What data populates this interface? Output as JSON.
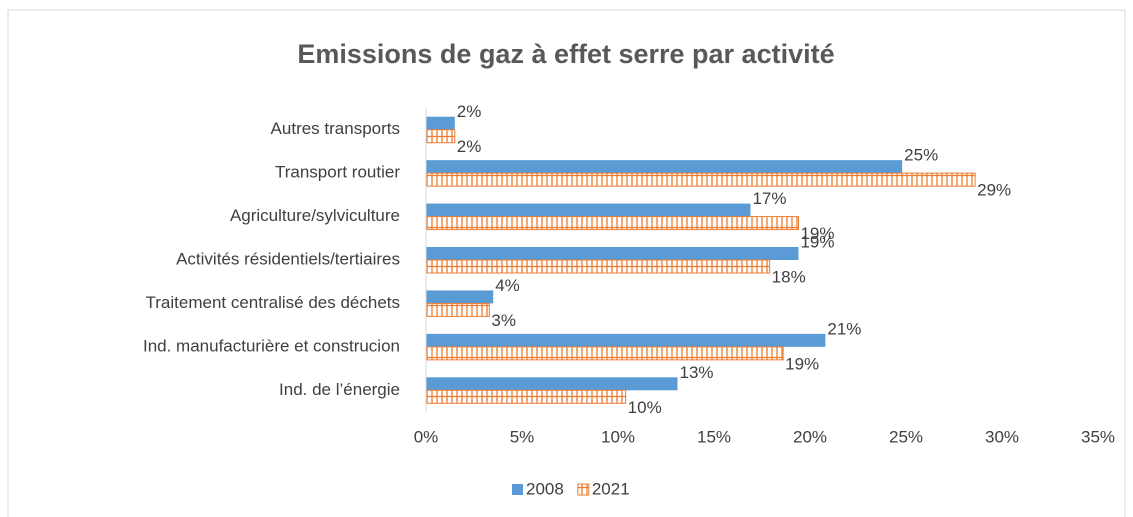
{
  "chart_data": {
    "type": "barh",
    "title": "Emissions de gaz à effet serre par activité",
    "categories": [
      "Autres transports",
      "Transport routier",
      "Agriculture/sylviculture",
      "Activités résidentiels/tertiaires",
      "Traitement centralisé des déchets",
      "Ind. manufacturière et construcion",
      "Ind. de l’énergie"
    ],
    "series": [
      {
        "name": "2008",
        "color": "#5b9bd5",
        "values": [
          1.5,
          24.8,
          16.9,
          19.4,
          3.5,
          20.8,
          13.1
        ],
        "value_labels": [
          "2%",
          "25%",
          "17%",
          "19%",
          "4%",
          "21%",
          "13%"
        ]
      },
      {
        "name": "2021",
        "color": "#ed7d31",
        "pattern": "hatch",
        "values": [
          1.5,
          28.6,
          19.4,
          17.9,
          3.3,
          18.6,
          10.4
        ],
        "value_labels": [
          "2%",
          "29%",
          "19%",
          "18%",
          "3%",
          "19%",
          "10%"
        ]
      }
    ],
    "xlim": [
      0,
      35
    ],
    "xticks": [
      {
        "value": 0,
        "label": "0%"
      },
      {
        "value": 5,
        "label": "5%"
      },
      {
        "value": 10,
        "label": "10%"
      },
      {
        "value": 15,
        "label": "15%"
      },
      {
        "value": 20,
        "label": "20%"
      },
      {
        "value": 25,
        "label": "25%"
      },
      {
        "value": 30,
        "label": "30%"
      },
      {
        "value": 35,
        "label": "35%"
      }
    ],
    "legend": "bottom"
  }
}
